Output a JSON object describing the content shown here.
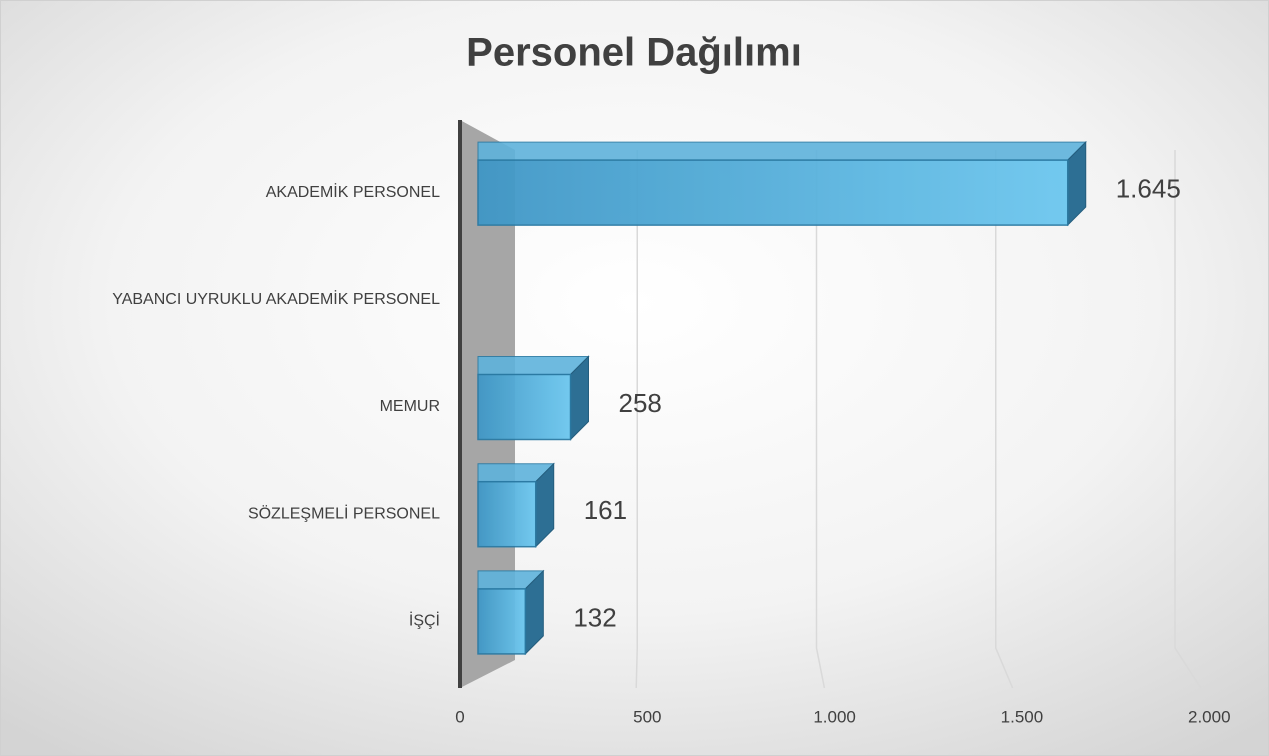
{
  "chart_data": {
    "type": "bar3d_horizontal",
    "title": "Personel Dağılımı",
    "categories": [
      "AKADEMİK PERSONEL",
      "YABANCI UYRUKLU AKADEMİK PERSONEL",
      "MEMUR",
      "SÖZLEŞMELİ PERSONEL",
      "İŞÇİ"
    ],
    "values": [
      1645,
      null,
      258,
      161,
      132
    ],
    "value_labels": [
      "1.645",
      null,
      "258",
      "161",
      "132"
    ],
    "color": "#4aa3d4",
    "xlim": [
      0,
      2000
    ],
    "xticks": [
      0,
      500,
      {
        "value": 1000,
        "label": "1.000"
      },
      {
        "value": 1500,
        "label": "1.500"
      },
      {
        "value": 2000,
        "label": "2.000"
      }
    ],
    "grid": true
  }
}
